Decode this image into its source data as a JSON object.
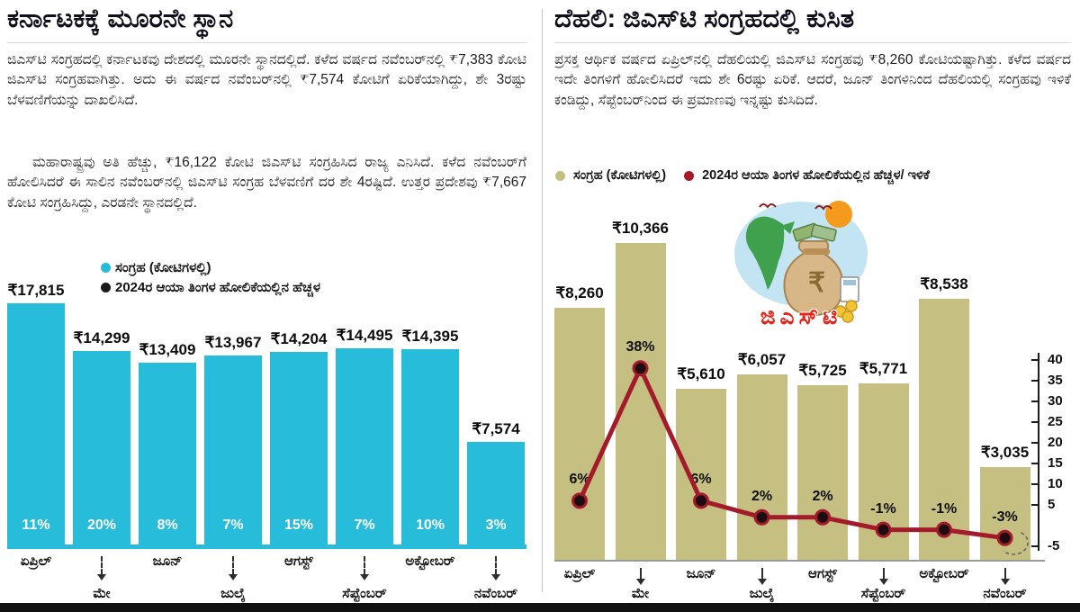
{
  "page": {
    "background": "#ffffff",
    "bottom_bar_color": "#101010"
  },
  "colors": {
    "left_bar": "#27bcd9",
    "right_bar": "#c6bf82",
    "growth_line": "#a31a2a",
    "left_growth_dot": "#1a1a1a",
    "title_text": "#10101c",
    "body_text": "#1d1d1d"
  },
  "left_panel": {
    "title": "ಕರ್ನಾಟಕಕ್ಕೆ ಮೂರನೇ ಸ್ಥಾನ",
    "paragraphs": [
      "ಜಿಎಸ್‌ಟಿ ಸಂಗ್ರಹದಲ್ಲಿ ಕರ್ನಾಟಕವು ದೇಶದಲ್ಲಿ ಮೂರನೇ ಸ್ಥಾನದಲ್ಲಿದೆ. ಕಳೆದ ವರ್ಷದ ನವೆಂಬರ್‌ನಲ್ಲಿ ₹7,383 ಕೋಟಿ ಜಿಎಸ್‌ಟಿ ಸಂಗ್ರಹವಾಗಿತ್ತು. ಅದು ಈ ವರ್ಷದ ನವೆಂಬರ್‌ನಲ್ಲಿ ₹7,574 ಕೋಟಿಗೆ ಏರಿಕೆಯಾಗಿದ್ದು, ಶೇ 3ರಷ್ಟು ಬೆಳವಣಿಗೆಯನ್ನು ದಾಖಲಿಸಿದೆ.",
      "ಮಹಾರಾಷ್ಟ್ರವು ಅತಿ ಹೆಚ್ಚು, ₹16,122 ಕೋಟಿ ಜಿಎಸ್‌ಟಿ ಸಂಗ್ರಹಿಸಿದ ರಾಜ್ಯ ಎನಿಸಿದೆ. ಕಳೆದ ನವೆಂಬರ್‌ಗೆ ಹೋಲಿಸಿದರೆ ಈ ಸಾಲಿನ ನವೆಂಬರ್‌ನಲ್ಲಿ ಜಿಎಸ್‌ಟಿ ಸಂಗ್ರಹ ಬೆಳವಣಿಗೆ ದರ ಶೇ 4ರಷ್ಟಿದೆ. ಉತ್ತರ ಪ್ರದೇಶವು ₹7,667 ಕೋಟಿ ಸಂಗ್ರಹಿಸಿದ್ದು, ಎರಡನೇ ಸ್ಥಾನದಲ್ಲಿದೆ."
    ],
    "legend": [
      {
        "label": "ಸಂಗ್ರಹ (ಕೋಟಿಗಳಲ್ಲಿ)",
        "color": "#27bcd9"
      },
      {
        "label": "2024ರ ಆಯಾ ತಿಂಗಳ ಹೋಲಿಕೆಯಲ್ಲಿನ ಹೆಚ್ಚಳ",
        "color": "#1a1a1a"
      }
    ]
  },
  "right_panel": {
    "title": "ದೆಹಲಿ: ಜಿಎಸ್‌ಟಿ ಸಂಗ್ರಹದಲ್ಲಿ ಕುಸಿತ",
    "paragraphs": [
      "ಪ್ರಸಕ್ತ ಆರ್ಥಿಕ ವರ್ಷದ ಏಪ್ರಿಲ್‌ನಲ್ಲಿ ದೆಹಲಿಯಲ್ಲಿ ಜಿಎಸ್‌ಟಿ ಸಂಗ್ರಹವು ₹8,260 ಕೋಟಿಯಷ್ಟಾಗಿತ್ತು. ಕಳೆದ ವರ್ಷದ ಇದೇ ತಿಂಗಳಿಗೆ ಹೋಲಿಸಿದರೆ ಇದು ಶೇ 6ರಷ್ಟು ಏರಿಕೆ. ಆದರೆ, ಜೂನ್ ತಿಂಗಳಿನಿಂದ ದೆಹಲಿಯಲ್ಲಿ ಸಂಗ್ರಹವು ಇಳಿಕೆ ಕಂಡಿದ್ದು, ಸೆಪ್ಟೆಂಬರ್‌ನಿಂದ ಈ ಪ್ರಮಾಣವು ಇನ್ನಷ್ಟು ಕುಸಿದಿದೆ."
    ],
    "legend": [
      {
        "label": "ಸಂಗ್ರಹ (ಕೋಟಿಗಳಲ್ಲಿ)",
        "color": "#c6bf82"
      },
      {
        "label": "2024ರ ಆಯಾ ತಿಂಗಳ ಹೋಲಿಕೆಯಲ್ಲಿನ ಹೆಚ್ಚಳ/ ಇಳಿಕೆ",
        "color": "#a31a2a"
      }
    ],
    "illustration_label": "ಜಿಎಸ್‌ಟಿ"
  },
  "chart_data": [
    {
      "id": "karnataka-gst",
      "type": "bar",
      "title": "ಕರ್ನಾಟಕಕ್ಕೆ ಮೂರನೇ ಸ್ಥಾನ",
      "categories": [
        "ಏಪ್ರಿಲ್",
        "ಮೇ",
        "ಜೂನ್",
        "ಜುಲೈ",
        "ಆಗಸ್ಟ್",
        "ಸೆಪ್ಟೆಂಬರ್",
        "ಅಕ್ಟೋಬರ್",
        "ನವೆಂಬರ್"
      ],
      "values": [
        17815,
        14299,
        13409,
        13967,
        14204,
        14495,
        14395,
        7574
      ],
      "value_labels": [
        "₹17,815",
        "₹14,299",
        "₹13,409",
        "₹13,967",
        "₹14,204",
        "₹14,495",
        "₹14,395",
        "₹7,574"
      ],
      "growth_pct": [
        11,
        20,
        8,
        7,
        15,
        7,
        10,
        3
      ],
      "growth_labels": [
        "11%",
        "20%",
        "8%",
        "7%",
        "15%",
        "7%",
        "10%",
        "3%"
      ],
      "ylabel": "ಸಂಗ್ರಹ (ಕೋಟಿಗಳಲ್ಲಿ)",
      "bar_color": "#27bcd9",
      "legend_position": "top"
    },
    {
      "id": "delhi-gst",
      "type": "bar",
      "title": "ದೆಹಲಿ: ಜಿಎಸ್‌ಟಿ ಸಂಗ್ರಹದಲ್ಲಿ ಕುಸಿತ",
      "categories": [
        "ಏಪ್ರಿಲ್",
        "ಮೇ",
        "ಜೂನ್",
        "ಜುಲೈ",
        "ಆಗಸ್ಟ್",
        "ಸೆಪ್ಟೆಂಬರ್",
        "ಅಕ್ಟೋಬರ್",
        "ನವೆಂಬರ್"
      ],
      "values": [
        8260,
        10366,
        5610,
        6057,
        5725,
        5771,
        8538,
        3035
      ],
      "value_labels": [
        "₹8,260",
        "₹10,366",
        "₹5,610",
        "₹6,057",
        "₹5,725",
        "₹5,771",
        "₹8,538",
        "₹3,035"
      ],
      "line_series": {
        "name": "2024ರ ಆಯಾ ತಿಂಗಳ ಹೋಲಿಕೆಯಲ್ಲಿನ ಹೆಚ್ಚಳ/ ಇಳಿಕೆ",
        "values": [
          6,
          38,
          6,
          2,
          2,
          -1,
          -1,
          -3
        ],
        "labels": [
          "6%",
          "38%",
          "6%",
          "2%",
          "2%",
          "-1%",
          "-1%",
          "-3%"
        ]
      },
      "y2_axis": {
        "ticks": [
          40,
          35,
          30,
          25,
          20,
          15,
          10,
          5,
          -5
        ],
        "range": [
          -5,
          40
        ]
      },
      "bar_color": "#c6bf82",
      "line_color": "#a31a2a",
      "legend_position": "top"
    }
  ]
}
